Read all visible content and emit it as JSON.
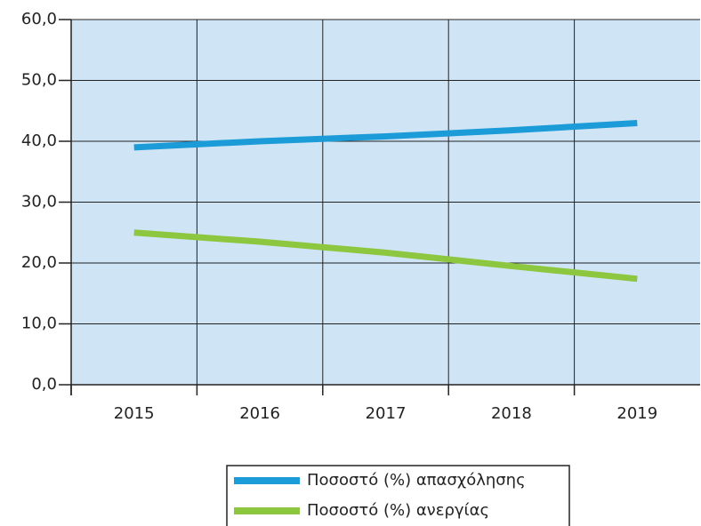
{
  "chart_data": {
    "type": "line",
    "categories": [
      "2015",
      "2016",
      "2017",
      "2018",
      "2019"
    ],
    "series": [
      {
        "name": "Ποσοστό (%) απασχόλησης",
        "color": "#1b9bd7",
        "values": [
          39.0,
          40.0,
          40.8,
          41.8,
          43.0
        ]
      },
      {
        "name": "Ποσοστό (%) ανεργίας",
        "color": "#8dc63f",
        "values": [
          25.0,
          23.5,
          21.7,
          19.5,
          17.4
        ]
      }
    ],
    "ylim": [
      0,
      60
    ],
    "yticks": [
      {
        "value": 0,
        "label": "0,0"
      },
      {
        "value": 10,
        "label": "10,0"
      },
      {
        "value": 20,
        "label": "20,0"
      },
      {
        "value": 30,
        "label": "30,0"
      },
      {
        "value": 40,
        "label": "40,0"
      },
      {
        "value": 50,
        "label": "50,0"
      },
      {
        "value": 60,
        "label": "60,0"
      }
    ],
    "grid": true,
    "plot_background": "#cfe4f5",
    "legend": "bottom"
  }
}
